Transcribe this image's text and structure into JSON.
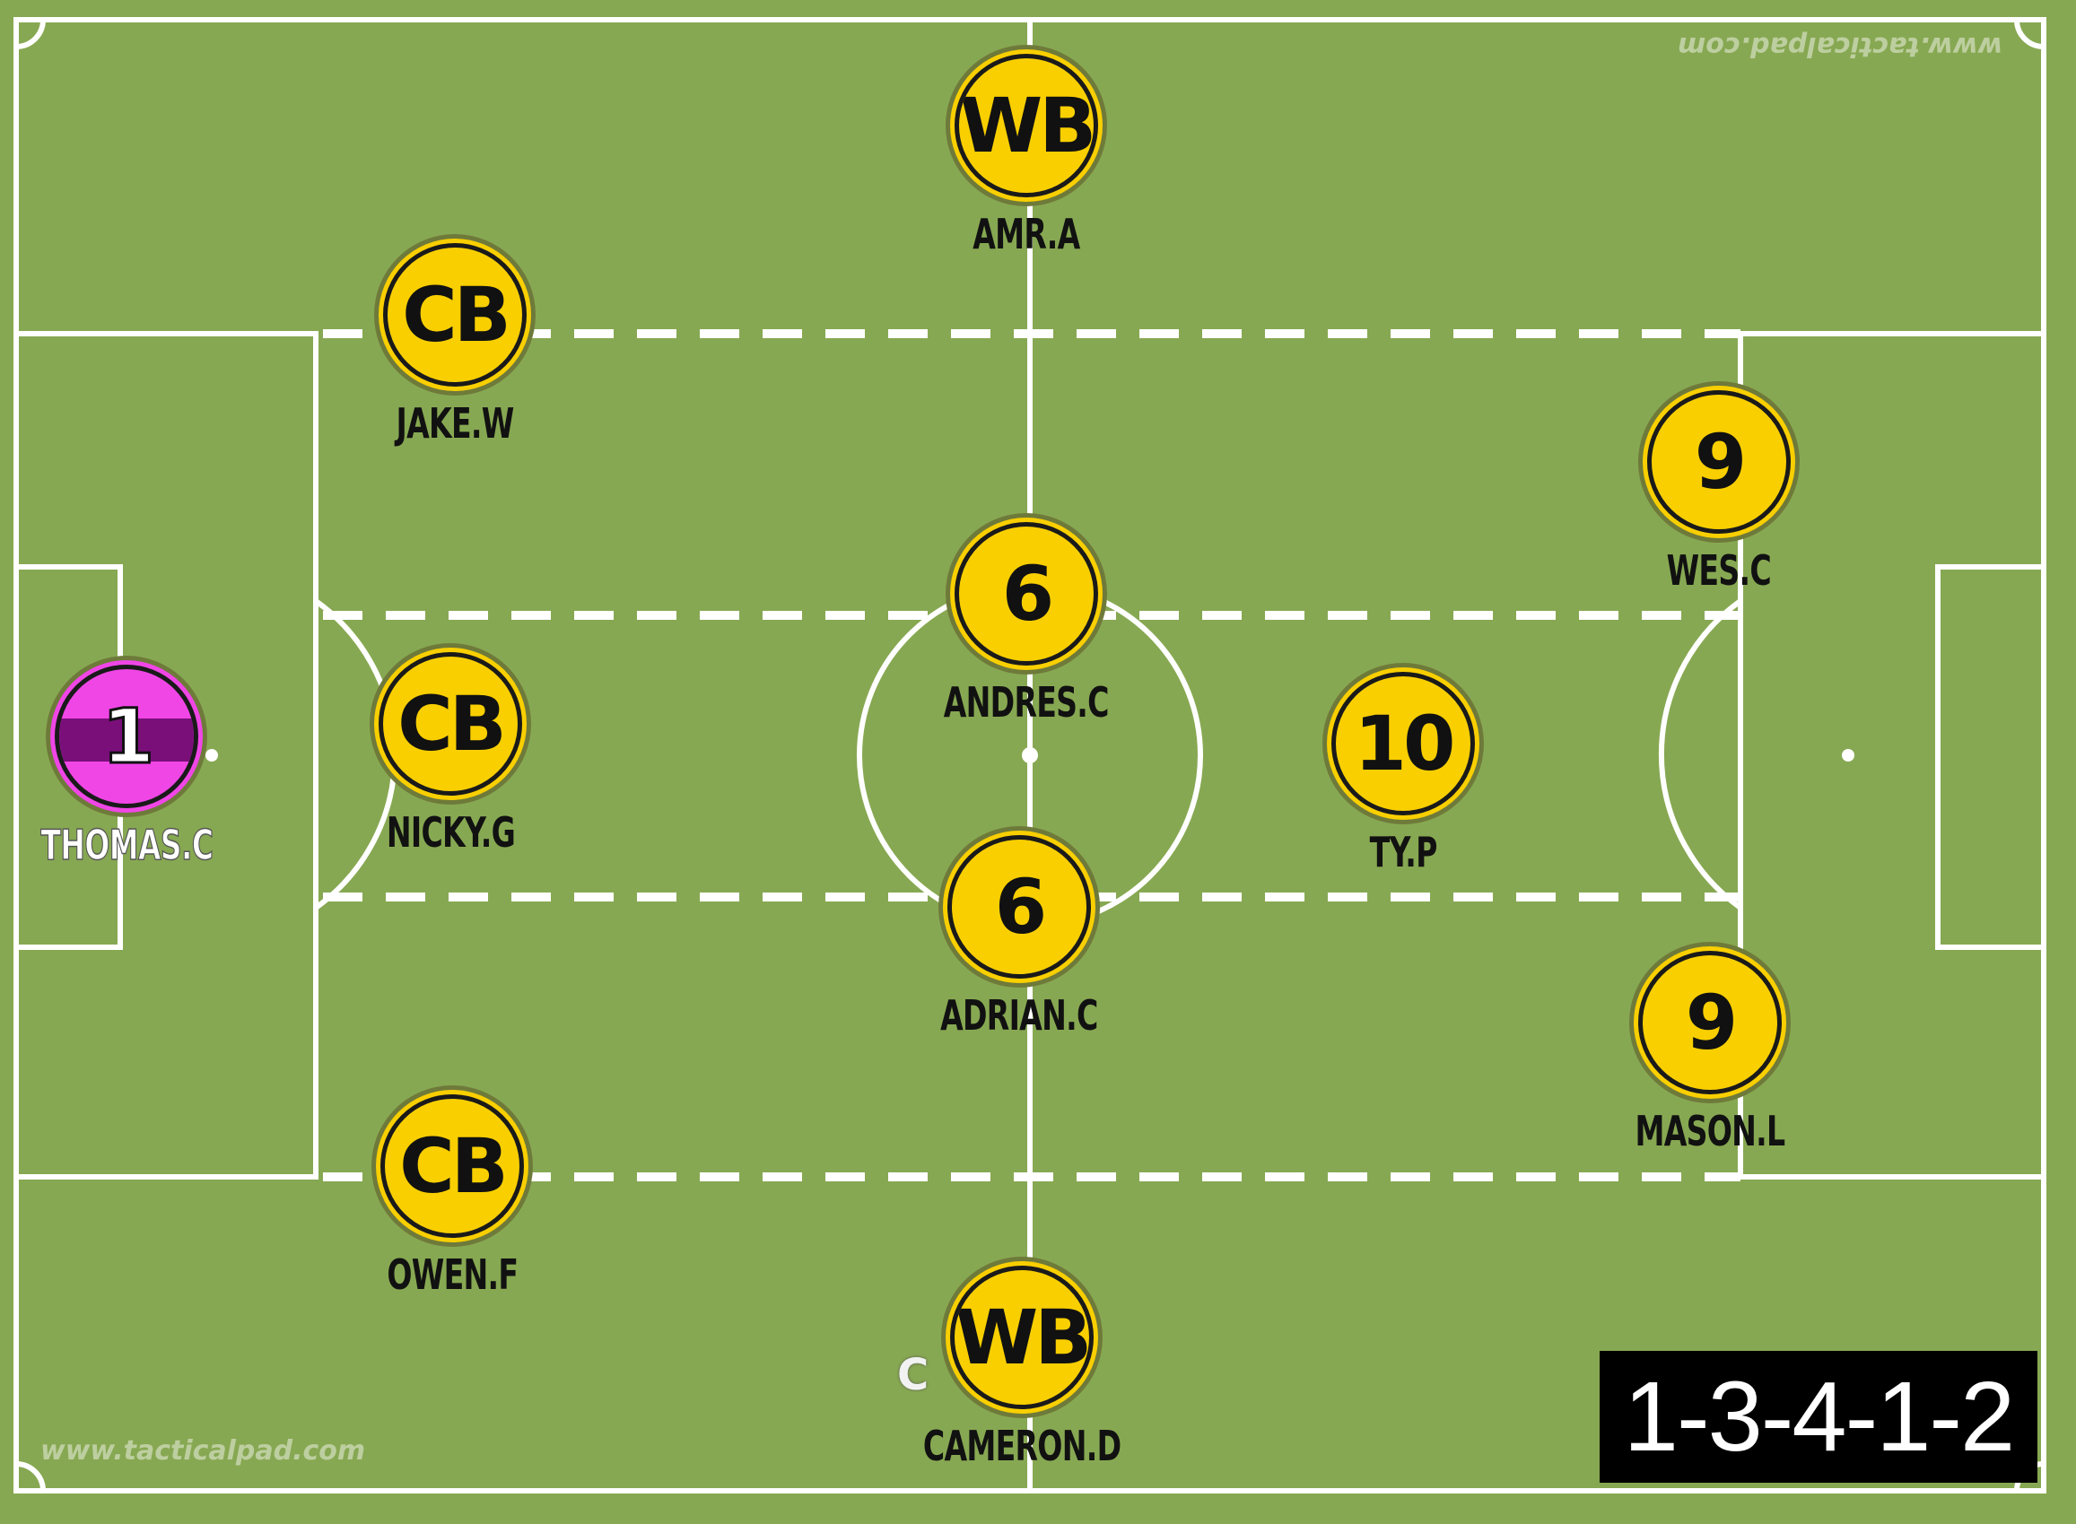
{
  "formation": "1-3-4-1-2",
  "watermark": "www.tacticalpad.com",
  "captain_marker": "C",
  "colors": {
    "pitch": "#87a852",
    "lines": "#ffffff",
    "player_disc": "#f9cf00",
    "goalkeeper_disc": "#f046e6",
    "goalkeeper_stripe": "#7a0f7a",
    "formation_box": "#000000"
  },
  "players": [
    {
      "label": "1",
      "name": "THOMAS.C",
      "role": "goalkeeper"
    },
    {
      "label": "CB",
      "name": "JAKE.W",
      "role": "outfield"
    },
    {
      "label": "CB",
      "name": "NICKY.G",
      "role": "outfield"
    },
    {
      "label": "CB",
      "name": "OWEN.F",
      "role": "outfield"
    },
    {
      "label": "WB",
      "name": "AMR.A",
      "role": "outfield"
    },
    {
      "label": "6",
      "name": "ANDRES.C",
      "role": "outfield"
    },
    {
      "label": "6",
      "name": "ADRIAN.C",
      "role": "outfield"
    },
    {
      "label": "WB",
      "name": "CAMERON.D",
      "role": "outfield",
      "captain": true
    },
    {
      "label": "10",
      "name": "TY.P",
      "role": "outfield"
    },
    {
      "label": "9",
      "name": "WES.C",
      "role": "outfield"
    },
    {
      "label": "9",
      "name": "MASON.L",
      "role": "outfield"
    }
  ]
}
